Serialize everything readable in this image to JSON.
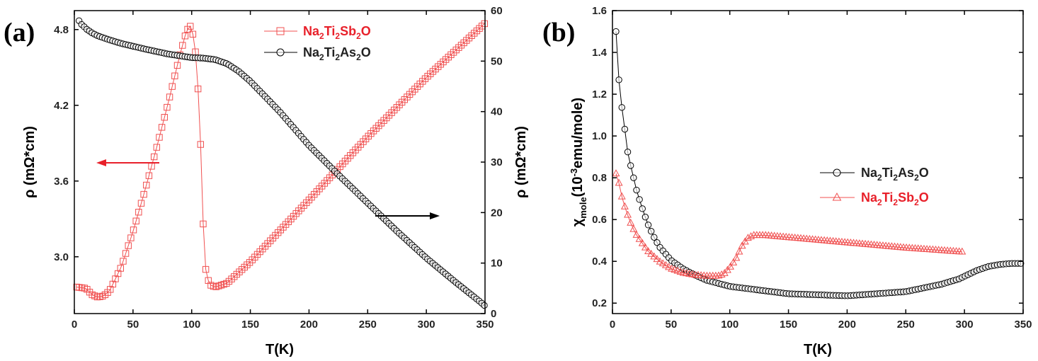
{
  "chart_data": [
    {
      "panel": "(a)",
      "type": "scatter",
      "xlabel": "T(K)",
      "ylabel_left": "ρ (mΩ*cm)",
      "ylabel_right": "ρ (mΩ*cm)",
      "xlim": [
        0,
        350
      ],
      "ylim_left": [
        2.55,
        4.95
      ],
      "ylim_right": [
        0,
        60
      ],
      "xticks": [
        0,
        50,
        100,
        150,
        200,
        250,
        300,
        350
      ],
      "yticks_left": [
        3.0,
        3.6,
        4.2,
        4.8
      ],
      "yticks_left_labels": [
        "3.0",
        "3.6",
        "4.2",
        "4.8"
      ],
      "yticks_right": [
        0,
        10,
        20,
        30,
        40,
        50,
        60
      ],
      "annotations": [
        {
          "type": "arrow",
          "direction": "left",
          "color": "#e8202a",
          "meaning": "red curve uses left axis"
        },
        {
          "type": "arrow",
          "direction": "right",
          "color": "#000000",
          "meaning": "black curve uses right axis"
        }
      ],
      "series": [
        {
          "name": "Na2Ti2Sb2O",
          "label_parts": [
            [
              "Na",
              ""
            ],
            [
              "2",
              "sub"
            ],
            [
              "Ti",
              ""
            ],
            [
              "2",
              "sub"
            ],
            [
              "Sb",
              ""
            ],
            [
              "2",
              "sub"
            ],
            [
              "O",
              ""
            ]
          ],
          "color": "#f05050",
          "marker": "square",
          "axis": "left",
          "x": [
            2,
            10,
            15,
            20,
            25,
            30,
            40,
            50,
            60,
            70,
            80,
            90,
            95,
            98,
            100,
            103,
            106,
            108,
            110,
            112,
            115,
            120,
            130,
            150,
            200,
            250,
            300,
            350
          ],
          "y": [
            2.76,
            2.75,
            2.7,
            2.68,
            2.69,
            2.73,
            2.92,
            3.2,
            3.52,
            3.86,
            4.22,
            4.6,
            4.77,
            4.83,
            4.82,
            4.65,
            4.25,
            3.8,
            3.2,
            2.9,
            2.78,
            2.76,
            2.79,
            2.96,
            3.45,
            3.95,
            4.42,
            4.85
          ]
        },
        {
          "name": "Na2Ti2As2O",
          "label_parts": [
            [
              "Na",
              ""
            ],
            [
              "2",
              "sub"
            ],
            [
              "Ti",
              ""
            ],
            [
              "2",
              "sub"
            ],
            [
              "As",
              ""
            ],
            [
              "2",
              "sub"
            ],
            [
              "O",
              ""
            ]
          ],
          "color": "#000000",
          "marker": "circle",
          "axis": "right",
          "x": [
            4,
            6,
            8,
            10,
            15,
            20,
            30,
            40,
            60,
            80,
            100,
            110,
            120,
            130,
            140,
            150,
            175,
            200,
            225,
            250,
            275,
            300,
            325,
            345,
            350
          ],
          "y": [
            58,
            57.3,
            56.9,
            56.4,
            55.6,
            55.0,
            54.2,
            53.5,
            52.4,
            51.4,
            50.7,
            50.6,
            50.3,
            49.5,
            48.0,
            46.0,
            40.0,
            33.3,
            27.5,
            21.9,
            16.3,
            11.0,
            6.2,
            2.5,
            1.5
          ]
        }
      ]
    },
    {
      "panel": "(b)",
      "type": "line",
      "xlabel": "T(K)",
      "ylabel_main": "χ",
      "ylabel_sub": "mole",
      "ylabel_rest": "(10",
      "ylabel_sup": "-3",
      "ylabel_unit": "emu/mole)",
      "xlim": [
        0,
        350
      ],
      "ylim": [
        0.15,
        1.6
      ],
      "xticks": [
        0,
        50,
        100,
        150,
        200,
        250,
        300,
        350
      ],
      "yticks": [
        0.2,
        0.4,
        0.6,
        0.8,
        1.0,
        1.2,
        1.4,
        1.6
      ],
      "yticks_labels": [
        "0.2",
        "0.4",
        "0.6",
        "0.8",
        "1.0",
        "1.2",
        "1.4",
        "1.6"
      ],
      "series": [
        {
          "name": "Na2Ti2As2O",
          "label_parts": [
            [
              "Na",
              ""
            ],
            [
              "2",
              "sub"
            ],
            [
              "Ti",
              ""
            ],
            [
              "2",
              "sub"
            ],
            [
              "As",
              ""
            ],
            [
              "2",
              "sub"
            ],
            [
              "O",
              ""
            ]
          ],
          "color": "#000000",
          "marker": "circle",
          "x": [
            3,
            5,
            7,
            10,
            12,
            15,
            18,
            20,
            25,
            30,
            35,
            40,
            50,
            60,
            70,
            80,
            100,
            150,
            200,
            250,
            280,
            295,
            310,
            320,
            330,
            340,
            350
          ],
          "y": [
            1.5,
            1.3,
            1.175,
            1.06,
            0.95,
            0.87,
            0.8,
            0.75,
            0.66,
            0.58,
            0.52,
            0.47,
            0.405,
            0.365,
            0.335,
            0.31,
            0.28,
            0.245,
            0.235,
            0.255,
            0.29,
            0.315,
            0.355,
            0.375,
            0.385,
            0.39,
            0.39
          ]
        },
        {
          "name": "Na2Ti2Sb2O",
          "label_parts": [
            [
              "Na",
              ""
            ],
            [
              "2",
              "sub"
            ],
            [
              "Ti",
              ""
            ],
            [
              "2",
              "sub"
            ],
            [
              "Sb",
              ""
            ],
            [
              "2",
              "sub"
            ],
            [
              "O",
              ""
            ]
          ],
          "color": "#f05050",
          "marker": "triangle",
          "x": [
            3,
            5,
            7,
            10,
            15,
            20,
            30,
            40,
            50,
            60,
            70,
            80,
            90,
            95,
            100,
            105,
            110,
            115,
            120,
            130,
            150,
            200,
            250,
            300
          ],
          "y": [
            0.82,
            0.79,
            0.73,
            0.67,
            0.59,
            0.53,
            0.45,
            0.4,
            0.365,
            0.345,
            0.335,
            0.33,
            0.33,
            0.34,
            0.37,
            0.41,
            0.47,
            0.51,
            0.525,
            0.525,
            0.515,
            0.49,
            0.465,
            0.445
          ]
        }
      ]
    }
  ]
}
